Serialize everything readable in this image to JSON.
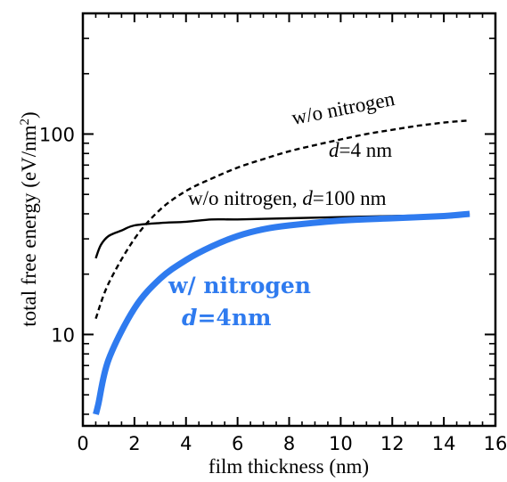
{
  "chart_data": {
    "type": "line",
    "xlabel": "film thickness (nm)",
    "ylabel_main": "total free energy (eV/nm",
    "ylabel_sup": "2",
    "ylabel_close": ")",
    "xlim": [
      0,
      16
    ],
    "ylim": [
      3.5,
      400
    ],
    "yscale": "log",
    "grid": false,
    "x_ticks": [
      0,
      2,
      4,
      6,
      8,
      10,
      12,
      14,
      16
    ],
    "y_tick_labels": [
      {
        "value": 10,
        "label": "10"
      },
      {
        "value": 100,
        "label": "100"
      }
    ],
    "series": [
      {
        "color": "#000000",
        "style": "dashed",
        "x": [
          0.5,
          1,
          2,
          3,
          4,
          5,
          6,
          7,
          8,
          9,
          10,
          11,
          12,
          13,
          14,
          15
        ],
        "y": [
          12,
          18,
          30,
          42,
          52,
          60,
          68,
          75,
          82,
          88,
          94,
          100,
          105,
          110,
          114,
          117
        ]
      },
      {
        "color": "#000000",
        "style": "solid",
        "x": [
          0.5,
          0.7,
          1,
          1.5,
          2,
          3,
          4,
          5,
          6,
          8,
          10,
          12,
          14,
          15
        ],
        "y": [
          24,
          28,
          31,
          33,
          35,
          36,
          36.5,
          37.5,
          37.5,
          38,
          38.5,
          39,
          39.5,
          40
        ]
      },
      {
        "color": "#2f7bef",
        "style": "solid",
        "x": [
          0.5,
          0.6,
          1,
          2,
          3,
          4,
          5,
          6,
          7,
          8,
          10,
          12,
          14,
          15
        ],
        "y": [
          4,
          4.5,
          7.5,
          13.5,
          19,
          23.5,
          27.5,
          31,
          33.5,
          35,
          37,
          38,
          39,
          40
        ]
      }
    ],
    "annotations": {
      "dashed_line1": "w/o nitrogen",
      "dashed_line2_italic": "d",
      "dashed_line2_rest": "=4 nm",
      "black_prefix": "w/o nitrogen, ",
      "black_italic": "d",
      "black_rest": "=100 nm",
      "blue_line1": "w/ nitrogen",
      "blue_line2_italic": "d",
      "blue_line2_rest": "=4nm"
    }
  }
}
